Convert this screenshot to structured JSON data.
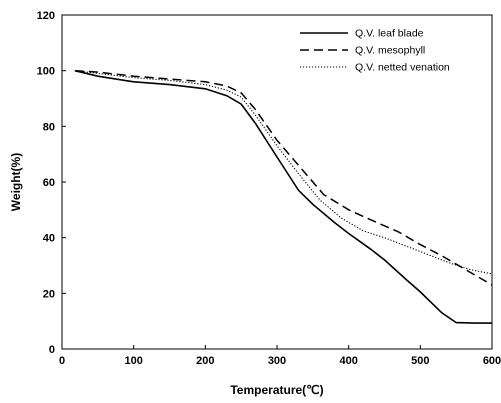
{
  "chart_data": {
    "type": "line",
    "title": "",
    "xlabel": "Temperature(℃)",
    "ylabel": "Weight(%)",
    "xlim": [
      0,
      600
    ],
    "ylim": [
      0,
      120
    ],
    "x_ticks": [
      "0",
      "100",
      "200",
      "300",
      "400",
      "500",
      "600"
    ],
    "y_ticks": [
      "0",
      "20",
      "40",
      "60",
      "80",
      "100",
      "120"
    ],
    "grid": false,
    "legend_position": "top-right",
    "series": [
      {
        "name": "Q.V. leaf blade",
        "style": "solid",
        "color": "#000000",
        "x": [
          18,
          50,
          100,
          150,
          200,
          230,
          250,
          270,
          300,
          330,
          350,
          380,
          400,
          430,
          450,
          480,
          500,
          530,
          550,
          575,
          600
        ],
        "y": [
          100,
          98,
          96,
          95,
          93.5,
          91,
          88,
          81,
          69,
          57,
          52,
          45.5,
          41.5,
          36,
          32,
          25,
          20.5,
          13,
          9.5,
          9.3,
          9.3
        ]
      },
      {
        "name": "Q.V. mesophyll",
        "style": "dashed",
        "color": "#000000",
        "x": [
          18,
          50,
          100,
          150,
          200,
          230,
          250,
          270,
          300,
          330,
          365,
          400,
          430,
          470,
          500,
          530,
          560,
          600
        ],
        "y": [
          100,
          99.5,
          98,
          97,
          96,
          94.5,
          92,
          86,
          75,
          66,
          55.5,
          50,
          46.5,
          42,
          37.5,
          33.5,
          29,
          23
        ]
      },
      {
        "name": "Q.V. netted venation",
        "style": "dotted",
        "color": "#000000",
        "x": [
          18,
          50,
          100,
          150,
          200,
          230,
          250,
          270,
          300,
          330,
          360,
          390,
          420,
          450,
          480,
          510,
          540,
          570,
          600
        ],
        "y": [
          100,
          99,
          97.5,
          96.5,
          95,
          93,
          90.5,
          84,
          73,
          63,
          53.5,
          47,
          42.5,
          40,
          37,
          34,
          31,
          28.5,
          27
        ]
      }
    ]
  }
}
